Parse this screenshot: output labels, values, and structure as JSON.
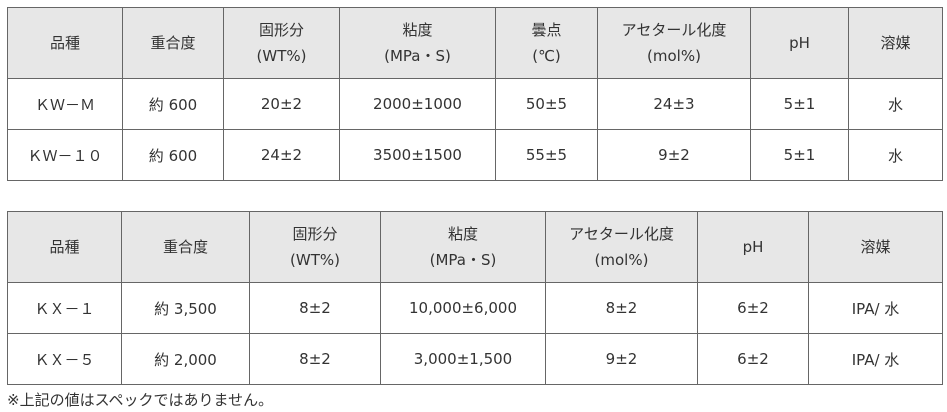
{
  "tables": [
    {
      "header": [
        [
          "品種"
        ],
        [
          "重合度"
        ],
        [
          "固形分",
          "(WT%)"
        ],
        [
          "粘度",
          "(MPa・S)"
        ],
        [
          "曇点",
          "(℃)"
        ],
        [
          "アセタール化度",
          "(mol%)"
        ],
        [
          "pH"
        ],
        [
          "溶媒"
        ]
      ],
      "rows": [
        [
          "ＫＷ－Ｍ",
          "約 600",
          "20±2",
          "2000±1000",
          "50±5",
          "24±3",
          "5±1",
          "水"
        ],
        [
          "ＫＷ－１０",
          "約 600",
          "24±2",
          "3500±1500",
          "55±5",
          "9±2",
          "5±1",
          "水"
        ]
      ]
    },
    {
      "header": [
        [
          "品種"
        ],
        [
          "重合度"
        ],
        [
          "固形分",
          "(WT%)"
        ],
        [
          "粘度",
          "(MPa・S)"
        ],
        [
          "アセタール化度",
          "(mol%)"
        ],
        [
          "pH"
        ],
        [
          "溶媒"
        ]
      ],
      "rows": [
        [
          "ＫＸ－１",
          "約 3,500",
          "8±2",
          "10,000±6,000",
          "8±2",
          "6±2",
          "IPA/ 水"
        ],
        [
          "ＫＸ－５",
          "約 2,000",
          "8±2",
          "3,000±1,500",
          "9±2",
          "6±2",
          "IPA/ 水"
        ]
      ]
    }
  ],
  "note": "※上記の値はスペックではありません。"
}
